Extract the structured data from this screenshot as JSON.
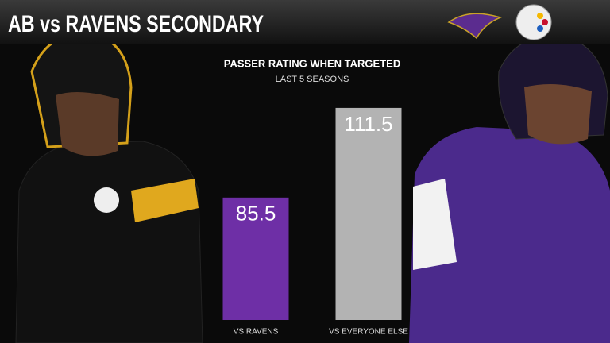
{
  "header": {
    "title": "AB vs RAVENS SECONDARY"
  },
  "chart_data": {
    "type": "bar",
    "title": "PASSER RATING WHEN TARGETED",
    "subtitle": "LAST 5 SEASONS",
    "categories": [
      "VS RAVENS",
      "VS EVERYONE ELSE"
    ],
    "values": [
      85.5,
      111.5
    ],
    "colors": [
      "#6e2fa6",
      "#b3b3b3"
    ],
    "ylim": [
      50,
      120
    ],
    "grid": false
  }
}
